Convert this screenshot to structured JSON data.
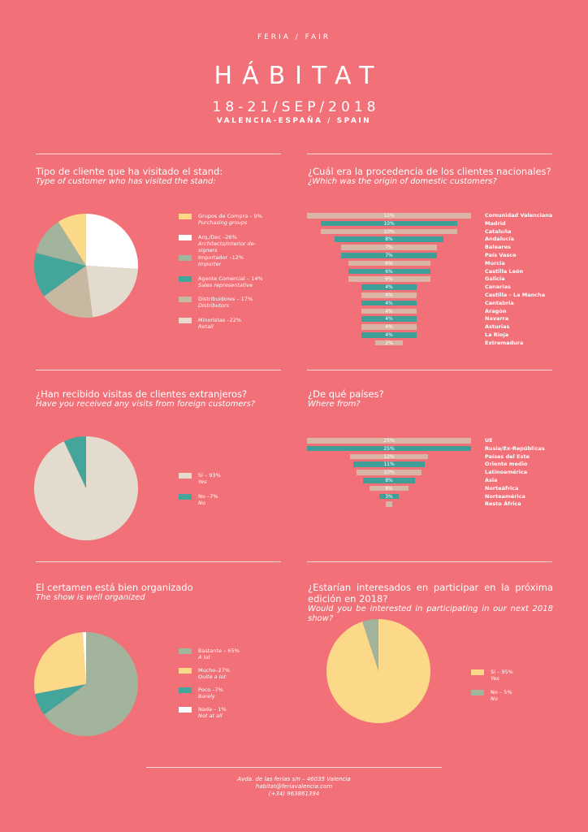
{
  "header": {
    "feria": "FERIA / FAIR",
    "title": "HÁBITAT",
    "dates": "18-21/SEP/2018",
    "place": "VALENCIA-ESPAÑA / SPAIN"
  },
  "colors": {
    "background": "#f27077",
    "yellow": "#fbd989",
    "white": "#ffffff",
    "sage": "#a2b49b",
    "teal": "#44a59b",
    "tan": "#c7b9a1",
    "light": "#e4dbcf",
    "rose": "#d9b5a6",
    "tealbar": "#3f9f98"
  },
  "q1": {
    "title_es": "Tipo de cliente que ha visitado el stand:",
    "title_en": "Type of customer who has visited the stand:",
    "legend": [
      {
        "label": "Grupos de Compra – 9%",
        "sub": "Purchasing groups",
        "color": "#fbd989"
      },
      {
        "label": "Arq./Dec –26%",
        "sub": "Architects/interior de-signers",
        "color": "#ffffff"
      },
      {
        "label": "Importador –12%",
        "sub": "Importer",
        "color": "#a2b49b"
      },
      {
        "label": "Agente Comercial – 14%",
        "sub": "Sales representative",
        "color": "#44a59b"
      },
      {
        "label": "Distribuidores – 17%",
        "sub": "Distributors",
        "color": "#c7b9a1"
      },
      {
        "label": "Minoristas –22%",
        "sub": "Retail",
        "color": "#e4dbcf"
      }
    ]
  },
  "q2": {
    "title_es": "¿Cuál era la procedencia de los clientes nacionales?",
    "title_en": "¿Which was the origin of domestic customers?"
  },
  "q3": {
    "title_es": "¿Han recibido visitas de clientes extranjeros?",
    "title_en": "Have you received any visits from foreign customers?",
    "legend": [
      {
        "label": "Sí – 93%",
        "sub": "Yes",
        "color": "#e4dbcf"
      },
      {
        "label": "No –7%",
        "sub": "No",
        "color": "#44a59b"
      }
    ]
  },
  "q4": {
    "title_es": "¿De qué países?",
    "title_en": "Where from?"
  },
  "q5": {
    "title_es": "El certamen está bien organizado",
    "title_en": "The show is well organized",
    "legend": [
      {
        "label": "Bastante – 65%",
        "sub": "A lot",
        "color": "#a2b49b"
      },
      {
        "label": "Mucho–27%",
        "sub": "Quite a lot",
        "color": "#fbd989"
      },
      {
        "label": "Poco –7%",
        "sub": "Barely",
        "color": "#44a59b"
      },
      {
        "label": "Nada – 1%",
        "sub": "Not at all",
        "color": "#ffffff"
      }
    ]
  },
  "q6": {
    "title_es_1": "¿Estarían interesados en participar en la próxima",
    "title_es_2": "edición en 2018?",
    "title_en_1": "Would you be interested in participating in our next 2018",
    "title_en_2": "show?",
    "legend": [
      {
        "label": "Sí – 95%",
        "sub": "Yes",
        "color": "#fbd989"
      },
      {
        "label": "No – 5%",
        "sub": "No",
        "color": "#a2b49b"
      }
    ]
  },
  "footer": {
    "address": "Avda. de las ferias s/n – 46035 Valencia",
    "email": "habitat@feriavalencia.com",
    "phone": "(+34) 963861394"
  },
  "chart_data": [
    {
      "type": "pie",
      "title": "Tipo de cliente que ha visitado el stand:",
      "categories": [
        "Grupos de Compra",
        "Arq./Dec",
        "Importador",
        "Agente Comercial",
        "Distribuidores",
        "Minoristas"
      ],
      "values": [
        9,
        26,
        12,
        14,
        17,
        22
      ],
      "colors": [
        "#fbd989",
        "#ffffff",
        "#a2b49b",
        "#44a59b",
        "#c7b9a1",
        "#e4dbcf"
      ]
    },
    {
      "type": "bar",
      "title": "¿Cuál era la procedencia de los clientes nacionales?",
      "categories": [
        "Comunidad Valenciana",
        "Madrid",
        "Cataluña",
        "Andalucía",
        "Baleares",
        "País Vasco",
        "Murcia",
        "Castilla León",
        "Galicia",
        "Canarias",
        "Castilla – La Mancha",
        "Cantabria",
        "Aragón",
        "Navarra",
        "Asturias",
        "La Rioja",
        "Extremadura"
      ],
      "values": [
        12,
        10,
        10,
        8,
        7,
        7,
        6,
        6,
        6,
        4,
        4,
        4,
        4,
        4,
        4,
        4,
        2
      ],
      "value_labels": [
        "12%",
        "10%",
        "10%",
        "8%",
        "7%",
        "7%",
        "6%",
        "6%",
        "6%",
        "4%",
        "4%",
        "4%",
        "4%",
        "4%",
        "4%",
        "4%",
        "2%"
      ],
      "xlim": [
        0,
        12
      ]
    },
    {
      "type": "pie",
      "title": "¿Han recibido visitas de clientes extranjeros?",
      "categories": [
        "Sí",
        "No"
      ],
      "values": [
        93,
        7
      ],
      "colors": [
        "#e4dbcf",
        "#44a59b"
      ]
    },
    {
      "type": "bar",
      "title": "¿De qué países?",
      "categories": [
        "UE",
        "Rusia/Ex-Repúblicas",
        "Países del Este",
        "Oriente medio",
        "Latinoamérica",
        "Asia",
        "Norteáfrica",
        "Norteamérica",
        "Resto África"
      ],
      "values": [
        25,
        25,
        12,
        11,
        10,
        8,
        6,
        3,
        1
      ],
      "value_labels": [
        "25%",
        "25%",
        "12%",
        "11%",
        "10%",
        "8%",
        "6%",
        "3%",
        ""
      ],
      "xlim": [
        0,
        25
      ]
    },
    {
      "type": "pie",
      "title": "El certamen está bien organizado",
      "categories": [
        "Bastante",
        "Mucho",
        "Poco",
        "Nada"
      ],
      "values": [
        65,
        27,
        7,
        1
      ],
      "colors": [
        "#a2b49b",
        "#fbd989",
        "#44a59b",
        "#ffffff"
      ]
    },
    {
      "type": "pie",
      "title": "¿Estarían interesados en participar en la próxima edición en 2018?",
      "categories": [
        "Sí",
        "No"
      ],
      "values": [
        95,
        5
      ],
      "colors": [
        "#fbd989",
        "#a2b49b"
      ]
    }
  ]
}
